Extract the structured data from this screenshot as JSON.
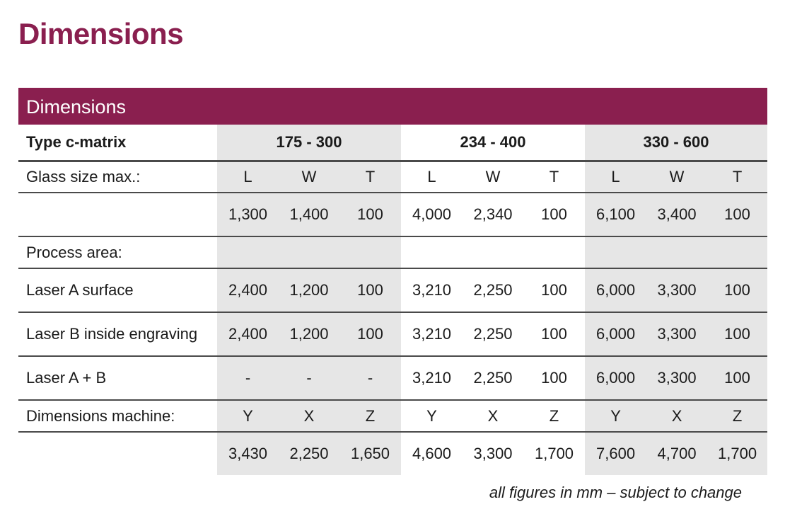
{
  "title": "Dimensions",
  "table": {
    "header": "Dimensions",
    "type_label": "Type c-matrix",
    "groups": [
      "175 - 300",
      "234 - 400",
      "330 - 600"
    ],
    "glass_label": "Glass size max.:",
    "glass_axes": [
      "L",
      "W",
      "T",
      "L",
      "W",
      "T",
      "L",
      "W",
      "T"
    ],
    "glass_values": [
      "1,300",
      "1,400",
      "100",
      "4,000",
      "2,340",
      "100",
      "6,100",
      "3,400",
      "100"
    ],
    "process_label": "Process area:",
    "laser_rows": [
      {
        "label": "Laser A surface",
        "values": [
          "2,400",
          "1,200",
          "100",
          "3,210",
          "2,250",
          "100",
          "6,000",
          "3,300",
          "100"
        ]
      },
      {
        "label": "Laser B inside engraving",
        "values": [
          "2,400",
          "1,200",
          "100",
          "3,210",
          "2,250",
          "100",
          "6,000",
          "3,300",
          "100"
        ]
      },
      {
        "label": "Laser A + B",
        "values": [
          "-",
          "-",
          "-",
          "3,210",
          "2,250",
          "100",
          "6,000",
          "3,300",
          "100"
        ]
      }
    ],
    "machine_label": "Dimensions machine:",
    "machine_axes": [
      "Y",
      "X",
      "Z",
      "Y",
      "X",
      "Z",
      "Y",
      "X",
      "Z"
    ],
    "machine_values": [
      "3,430",
      "2,250",
      "1,650",
      "4,600",
      "3,300",
      "1,700",
      "7,600",
      "4,700",
      "1,700"
    ]
  },
  "footnote": "all figures in mm – subject to change"
}
